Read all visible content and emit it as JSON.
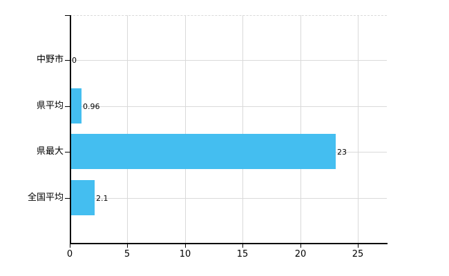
{
  "chart_data": {
    "type": "bar",
    "orientation": "horizontal",
    "title": "",
    "xlabel": "",
    "ylabel": "",
    "categories": [
      "中野市",
      "県平均",
      "県最大",
      "全国平均"
    ],
    "values": [
      0,
      0.96,
      23,
      2.1
    ],
    "value_labels": [
      "0",
      "0.96",
      "23",
      "2.1"
    ],
    "xticks": [
      0,
      5,
      10,
      15,
      20,
      25
    ],
    "xtick_labels": [
      "0",
      "5",
      "10",
      "15",
      "20",
      "25"
    ],
    "xlim": [
      0,
      27.5
    ],
    "grid": true,
    "legend": false,
    "colors": {
      "bar": "#44BEF0",
      "axis": "#000000",
      "gridline": "#d9d9d9",
      "top_border": "#d9d9d9",
      "text": "#000000",
      "background": "#ffffff"
    }
  }
}
